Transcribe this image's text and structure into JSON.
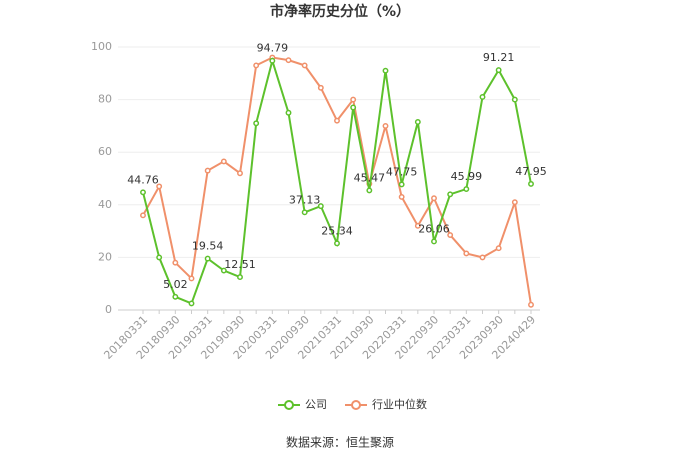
{
  "chart_data": {
    "type": "line",
    "title": "市净率历史分位（%）",
    "source": "数据来源：恒生聚源",
    "categories": [
      "20180331",
      null,
      "20180930",
      null,
      "20190331",
      null,
      "20190930",
      null,
      "20200331",
      null,
      "20200930",
      null,
      "20210331",
      null,
      "20210930",
      null,
      "20220331",
      null,
      "20220930",
      null,
      "20230331",
      null,
      "20230930",
      null,
      "20240429"
    ],
    "series": [
      {
        "name": "公司",
        "color": "#5dc12c",
        "values": [
          44.76,
          20,
          5.02,
          2.5,
          19.54,
          15,
          12.51,
          71,
          94.79,
          75,
          37.13,
          39.5,
          25.34,
          77,
          45.47,
          91,
          47.75,
          71.5,
          26.06,
          44,
          45.99,
          81,
          91.21,
          80,
          47.95
        ],
        "value_labels": [
          "44.76",
          null,
          "5.02",
          null,
          "19.54",
          null,
          "12.51",
          null,
          "94.79",
          null,
          "37.13",
          null,
          "25.34",
          null,
          "45.47",
          null,
          "47.75",
          null,
          "26.06",
          null,
          "45.99",
          null,
          "91.21",
          null,
          "47.95"
        ]
      },
      {
        "name": "行业中位数",
        "color": "#f0906a",
        "values": [
          36,
          47,
          18,
          12,
          53,
          56.5,
          52,
          93,
          96,
          95,
          93,
          84.5,
          72,
          80,
          48,
          70,
          43,
          32,
          42.5,
          28.5,
          21.5,
          20,
          23.5,
          41,
          2
        ]
      }
    ],
    "ylim": [
      0,
      100
    ],
    "yticks": [
      0,
      20,
      40,
      60,
      80,
      100
    ],
    "grid": true,
    "legend": "bottom"
  }
}
